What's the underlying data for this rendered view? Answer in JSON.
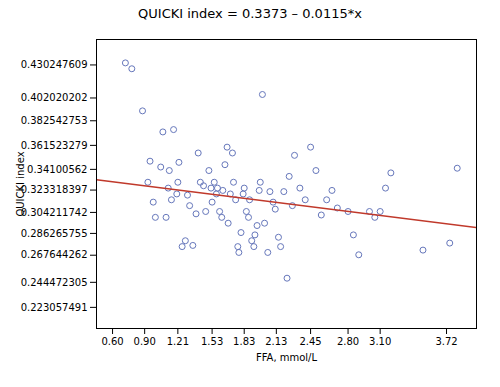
{
  "chart_data": {
    "type": "scatter",
    "title": "QUICKI index = 0.3373 – 0.0115*x",
    "xlabel": "FFA, mmol/L",
    "ylabel": "QUICKI index",
    "xlim": [
      0.45,
      4.0
    ],
    "ylim": [
      0.205,
      0.452
    ],
    "xticks": [
      {
        "value": 0.6,
        "label": "0.60"
      },
      {
        "value": 0.9,
        "label": "0.90"
      },
      1.21,
      1.53,
      1.83,
      2.13,
      2.45,
      {
        "value": 2.8,
        "label": "2.80"
      },
      {
        "value": 3.1,
        "label": "3.10"
      },
      3.72
    ],
    "yticks": [
      0.223057491,
      0.244472305,
      0.267644262,
      0.286265755,
      0.304211742,
      0.323318397,
      0.34100562,
      0.361523279,
      0.382542753,
      0.402020202,
      0.430247609
    ],
    "grid": false,
    "series": [
      {
        "type": "scatter",
        "color": "#6677bb",
        "marker": "circle",
        "x": [
          0.72,
          0.78,
          0.88,
          0.93,
          0.95,
          0.98,
          1.0,
          1.05,
          1.07,
          1.1,
          1.12,
          1.13,
          1.15,
          1.17,
          1.2,
          1.21,
          1.22,
          1.25,
          1.28,
          1.3,
          1.32,
          1.35,
          1.38,
          1.4,
          1.42,
          1.45,
          1.47,
          1.5,
          1.52,
          1.53,
          1.55,
          1.57,
          1.58,
          1.6,
          1.62,
          1.63,
          1.65,
          1.67,
          1.68,
          1.7,
          1.72,
          1.73,
          1.75,
          1.77,
          1.78,
          1.8,
          1.82,
          1.83,
          1.85,
          1.87,
          1.88,
          1.9,
          1.92,
          1.93,
          1.95,
          1.97,
          1.98,
          2.0,
          2.02,
          2.05,
          2.07,
          2.1,
          2.12,
          2.15,
          2.17,
          2.2,
          2.23,
          2.25,
          2.28,
          2.3,
          2.35,
          2.4,
          2.45,
          2.5,
          2.55,
          2.6,
          2.65,
          2.7,
          2.8,
          2.85,
          2.9,
          3.0,
          3.05,
          3.1,
          3.15,
          3.2,
          3.5,
          3.75,
          3.82
        ],
        "values": [
          0.432,
          0.427,
          0.391,
          0.33,
          0.348,
          0.313,
          0.3,
          0.343,
          0.373,
          0.3,
          0.325,
          0.34,
          0.315,
          0.375,
          0.32,
          0.33,
          0.347,
          0.275,
          0.28,
          0.319,
          0.31,
          0.276,
          0.303,
          0.355,
          0.33,
          0.327,
          0.305,
          0.34,
          0.325,
          0.313,
          0.33,
          0.32,
          0.325,
          0.305,
          0.3,
          0.323,
          0.345,
          0.36,
          0.295,
          0.32,
          0.355,
          0.33,
          0.315,
          0.275,
          0.27,
          0.287,
          0.32,
          0.325,
          0.305,
          0.3,
          0.315,
          0.28,
          0.275,
          0.285,
          0.293,
          0.323,
          0.33,
          0.405,
          0.295,
          0.27,
          0.322,
          0.313,
          0.307,
          0.283,
          0.275,
          0.322,
          0.248,
          0.335,
          0.31,
          0.353,
          0.325,
          0.315,
          0.36,
          0.34,
          0.302,
          0.315,
          0.323,
          0.308,
          0.305,
          0.285,
          0.268,
          0.305,
          0.3,
          0.305,
          0.325,
          0.338,
          0.272,
          0.278,
          0.342
        ]
      },
      {
        "type": "line",
        "color": "#c0392b",
        "line_style": "solid",
        "x": [
          0.45,
          4.0
        ],
        "values": [
          0.332125,
          0.2913
        ]
      }
    ]
  }
}
